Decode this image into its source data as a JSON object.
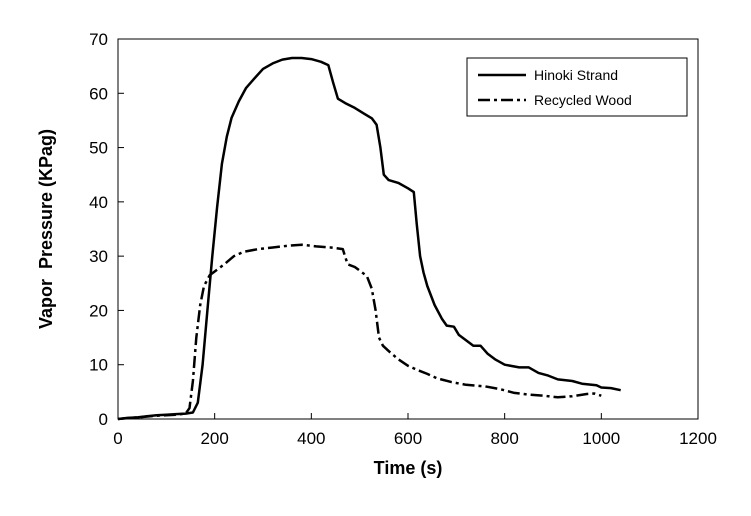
{
  "chart_data": {
    "type": "line",
    "title": "",
    "xlabel": "Time (s)",
    "ylabel": "Vapor  Pressure (KPag)",
    "xlim": [
      0,
      1200
    ],
    "ylim": [
      0,
      70
    ],
    "xticks": [
      0,
      200,
      400,
      600,
      800,
      1000,
      1200
    ],
    "yticks": [
      0,
      10,
      20,
      30,
      40,
      50,
      60,
      70
    ],
    "grid": false,
    "legend": {
      "position": "top-right",
      "entries": [
        "Hinoki Strand",
        "Recycled Wood"
      ]
    },
    "series": [
      {
        "name": "Hinoki Strand",
        "style": "solid",
        "color": "#000000",
        "points": [
          [
            0,
            0
          ],
          [
            20,
            0.2
          ],
          [
            40,
            0.3
          ],
          [
            60,
            0.5
          ],
          [
            80,
            0.7
          ],
          [
            100,
            0.8
          ],
          [
            120,
            0.9
          ],
          [
            140,
            1.0
          ],
          [
            155,
            1.2
          ],
          [
            165,
            3
          ],
          [
            175,
            10
          ],
          [
            185,
            20
          ],
          [
            195,
            30
          ],
          [
            205,
            39
          ],
          [
            215,
            47
          ],
          [
            225,
            52
          ],
          [
            235,
            55.5
          ],
          [
            250,
            58.5
          ],
          [
            265,
            61
          ],
          [
            280,
            62.5
          ],
          [
            300,
            64.5
          ],
          [
            320,
            65.5
          ],
          [
            340,
            66.2
          ],
          [
            360,
            66.5
          ],
          [
            380,
            66.5
          ],
          [
            400,
            66.3
          ],
          [
            420,
            65.8
          ],
          [
            435,
            65.2
          ],
          [
            445,
            62
          ],
          [
            455,
            59
          ],
          [
            470,
            58.2
          ],
          [
            490,
            57.3
          ],
          [
            510,
            56.2
          ],
          [
            525,
            55.4
          ],
          [
            535,
            54.2
          ],
          [
            543,
            50
          ],
          [
            550,
            45
          ],
          [
            560,
            44
          ],
          [
            580,
            43.5
          ],
          [
            600,
            42.5
          ],
          [
            612,
            41.8
          ],
          [
            618,
            36
          ],
          [
            625,
            30
          ],
          [
            632,
            27
          ],
          [
            640,
            24.5
          ],
          [
            655,
            21
          ],
          [
            670,
            18.5
          ],
          [
            680,
            17.2
          ],
          [
            695,
            17
          ],
          [
            705,
            15.5
          ],
          [
            720,
            14.5
          ],
          [
            735,
            13.5
          ],
          [
            750,
            13.5
          ],
          [
            765,
            12
          ],
          [
            780,
            11
          ],
          [
            800,
            10
          ],
          [
            830,
            9.5
          ],
          [
            850,
            9.5
          ],
          [
            870,
            8.5
          ],
          [
            890,
            8
          ],
          [
            910,
            7.3
          ],
          [
            940,
            7
          ],
          [
            960,
            6.5
          ],
          [
            990,
            6.2
          ],
          [
            1000,
            5.8
          ],
          [
            1020,
            5.7
          ],
          [
            1040,
            5.3
          ]
        ]
      },
      {
        "name": "Recycled Wood",
        "style": "dash-dot",
        "color": "#000000",
        "points": [
          [
            0,
            0
          ],
          [
            40,
            0.3
          ],
          [
            80,
            0.6
          ],
          [
            120,
            0.8
          ],
          [
            140,
            1.0
          ],
          [
            148,
            2
          ],
          [
            155,
            7
          ],
          [
            162,
            15
          ],
          [
            170,
            21
          ],
          [
            178,
            24.5
          ],
          [
            190,
            26.5
          ],
          [
            205,
            27.5
          ],
          [
            220,
            28.5
          ],
          [
            240,
            30
          ],
          [
            260,
            30.8
          ],
          [
            290,
            31.3
          ],
          [
            320,
            31.6
          ],
          [
            350,
            31.9
          ],
          [
            380,
            32.1
          ],
          [
            410,
            31.8
          ],
          [
            440,
            31.6
          ],
          [
            465,
            31.3
          ],
          [
            475,
            28.5
          ],
          [
            490,
            28
          ],
          [
            505,
            27
          ],
          [
            515,
            26.3
          ],
          [
            525,
            24
          ],
          [
            533,
            20
          ],
          [
            540,
            15
          ],
          [
            548,
            13.5
          ],
          [
            560,
            12.5
          ],
          [
            580,
            11
          ],
          [
            600,
            9.8
          ],
          [
            620,
            9
          ],
          [
            640,
            8.3
          ],
          [
            660,
            7.5
          ],
          [
            690,
            6.8
          ],
          [
            720,
            6.3
          ],
          [
            760,
            6
          ],
          [
            790,
            5.5
          ],
          [
            820,
            4.8
          ],
          [
            850,
            4.5
          ],
          [
            880,
            4.3
          ],
          [
            910,
            4
          ],
          [
            940,
            4.2
          ],
          [
            970,
            4.6
          ],
          [
            985,
            4.7
          ],
          [
            1000,
            4.3
          ]
        ]
      }
    ]
  }
}
